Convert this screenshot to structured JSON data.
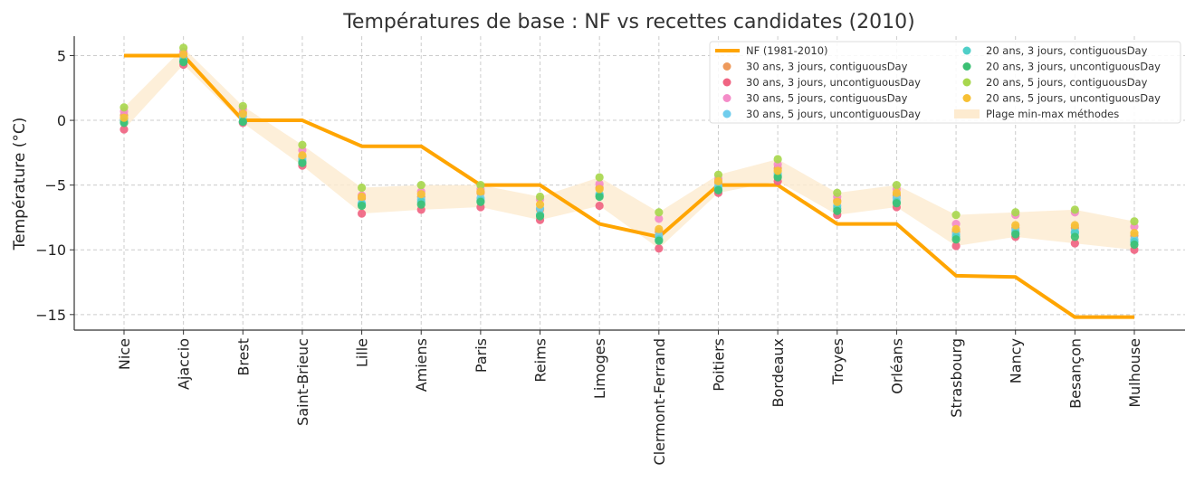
{
  "chart_data": {
    "type": "line",
    "title": "Températures de base : NF vs recettes candidates (2010)",
    "xlabel": "",
    "ylabel": "Température (°C)",
    "ylim": [
      -16.2,
      6.5
    ],
    "yticks": [
      5,
      0,
      -5,
      -10,
      -15
    ],
    "ytick_labels": [
      "5",
      "0",
      "−5",
      "−10",
      "−15"
    ],
    "grid": true,
    "legend_position": "top-right",
    "categories": [
      "Nice",
      "Ajaccio",
      "Brest",
      "Saint-Brieuc",
      "Lille",
      "Amiens",
      "Paris",
      "Reims",
      "Limoges",
      "Clermont-Ferrand",
      "Poitiers",
      "Bordeaux",
      "Troyes",
      "Orléans",
      "Strasbourg",
      "Nancy",
      "Besançon",
      "Mulhouse"
    ],
    "nf_series": {
      "name": "NF (1981-2010)",
      "color": "#FFA500",
      "values": [
        5,
        5,
        0,
        0,
        -2,
        -2,
        -5,
        -5,
        -8,
        -9,
        -5,
        -5,
        -8,
        -8,
        -12,
        -12.1,
        -15.2,
        -15.2
      ]
    },
    "band": {
      "name": "Plage min-max méthodes",
      "color": "#FDEBD0",
      "min": [
        -0.7,
        4.3,
        -0.2,
        -3.5,
        -7.2,
        -6.9,
        -6.7,
        -7.7,
        -6.6,
        -9.9,
        -5.6,
        -4.7,
        -7.3,
        -6.7,
        -9.7,
        -9.0,
        -9.5,
        -10.0
      ],
      "max": [
        1.0,
        5.6,
        1.1,
        -1.9,
        -5.2,
        -5.0,
        -5.0,
        -5.9,
        -4.4,
        -7.1,
        -4.2,
        -3.0,
        -5.6,
        -5.0,
        -7.3,
        -7.1,
        -6.9,
        -7.8
      ]
    },
    "series": [
      {
        "name": "30 ans, 3 jours, contiguousDay",
        "color": "#EE9A5C",
        "values": [
          0.4,
          4.9,
          0.6,
          -2.8,
          -6.0,
          -5.9,
          -5.6,
          -6.9,
          -5.2,
          -8.6,
          -4.8,
          -3.7,
          -6.2,
          -5.8,
          -8.6,
          -8.3,
          -8.3,
          -8.9
        ]
      },
      {
        "name": "30 ans, 3 jours, uncontiguousDay",
        "color": "#F06482",
        "values": [
          -0.7,
          4.3,
          -0.2,
          -3.5,
          -7.2,
          -6.9,
          -6.7,
          -7.7,
          -6.6,
          -9.9,
          -5.6,
          -4.7,
          -7.3,
          -6.7,
          -9.7,
          -9.0,
          -9.5,
          -10.0
        ]
      },
      {
        "name": "30 ans, 5 jours, contiguousDay",
        "color": "#F48CC8",
        "values": [
          0.7,
          5.3,
          0.9,
          -2.3,
          -5.8,
          -5.5,
          -5.3,
          -6.1,
          -4.9,
          -7.6,
          -4.5,
          -3.4,
          -5.9,
          -5.3,
          -8.0,
          -7.3,
          -7.1,
          -8.2
        ]
      },
      {
        "name": "30 ans, 5 jours, uncontiguousDay",
        "color": "#6FCDED",
        "values": [
          0.1,
          4.7,
          0.3,
          -3.0,
          -6.4,
          -6.1,
          -6.0,
          -6.8,
          -5.7,
          -8.9,
          -5.1,
          -4.1,
          -6.6,
          -6.0,
          -8.8,
          -8.5,
          -8.6,
          -9.2
        ]
      },
      {
        "name": "20 ans, 3 jours, contiguousDay",
        "color": "#4FCFC8",
        "values": [
          -0.1,
          4.6,
          -0.1,
          -3.2,
          -6.5,
          -6.3,
          -6.2,
          -7.3,
          -5.8,
          -9.2,
          -5.3,
          -4.3,
          -6.8,
          -6.3,
          -9.0,
          -8.7,
          -8.7,
          -9.4
        ]
      },
      {
        "name": "20 ans, 3 jours, uncontiguousDay",
        "color": "#3CC074",
        "values": [
          -0.2,
          4.5,
          -0.1,
          -3.3,
          -6.6,
          -6.5,
          -6.3,
          -7.4,
          -5.9,
          -9.3,
          -5.4,
          -4.4,
          -7.0,
          -6.4,
          -9.2,
          -8.8,
          -9.0,
          -9.6
        ]
      },
      {
        "name": "20 ans, 5 jours, contiguousDay",
        "color": "#A8D74E",
        "values": [
          1.0,
          5.6,
          1.1,
          -1.9,
          -5.2,
          -5.0,
          -5.0,
          -5.9,
          -4.4,
          -7.1,
          -4.2,
          -3.0,
          -5.6,
          -5.0,
          -7.3,
          -7.1,
          -6.9,
          -7.8
        ]
      },
      {
        "name": "20 ans, 5 jours, uncontiguousDay",
        "color": "#F7C034",
        "values": [
          0.2,
          5.1,
          0.5,
          -2.7,
          -5.9,
          -5.7,
          -5.5,
          -6.5,
          -5.3,
          -8.4,
          -4.7,
          -3.9,
          -6.3,
          -5.6,
          -8.4,
          -8.1,
          -8.1,
          -8.7
        ]
      }
    ]
  }
}
